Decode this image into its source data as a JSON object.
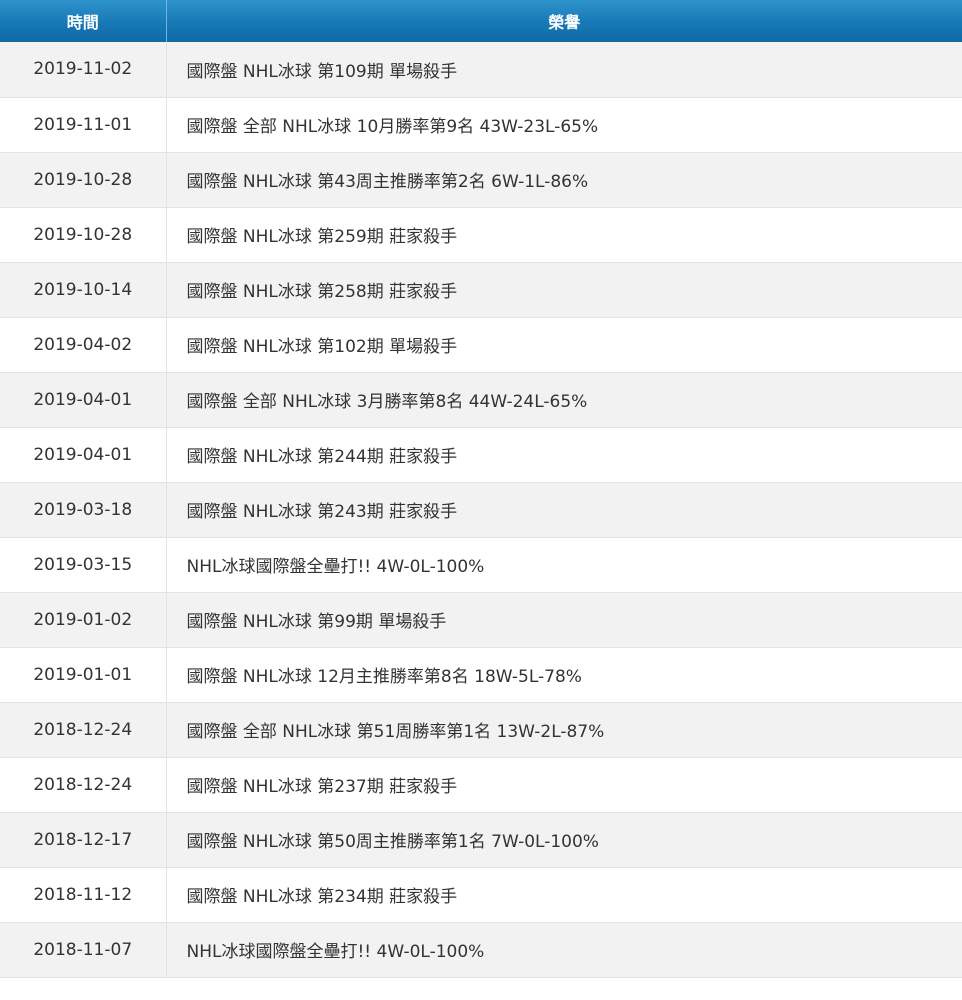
{
  "table": {
    "headers": {
      "date": "時間",
      "honor": "榮譽"
    },
    "rows": [
      {
        "date": "2019-11-02",
        "honor": "國際盤 NHL冰球 第109期 單場殺手"
      },
      {
        "date": "2019-11-01",
        "honor": "國際盤 全部 NHL冰球 10月勝率第9名 43W-23L-65%"
      },
      {
        "date": "2019-10-28",
        "honor": "國際盤 NHL冰球 第43周主推勝率第2名 6W-1L-86%"
      },
      {
        "date": "2019-10-28",
        "honor": "國際盤 NHL冰球 第259期 莊家殺手"
      },
      {
        "date": "2019-10-14",
        "honor": "國際盤 NHL冰球 第258期 莊家殺手"
      },
      {
        "date": "2019-04-02",
        "honor": "國際盤 NHL冰球 第102期 單場殺手"
      },
      {
        "date": "2019-04-01",
        "honor": "國際盤 全部 NHL冰球 3月勝率第8名 44W-24L-65%"
      },
      {
        "date": "2019-04-01",
        "honor": "國際盤 NHL冰球 第244期 莊家殺手"
      },
      {
        "date": "2019-03-18",
        "honor": "國際盤 NHL冰球 第243期 莊家殺手"
      },
      {
        "date": "2019-03-15",
        "honor": "NHL冰球國際盤全壘打!! 4W-0L-100%"
      },
      {
        "date": "2019-01-02",
        "honor": "國際盤 NHL冰球 第99期 單場殺手"
      },
      {
        "date": "2019-01-01",
        "honor": "國際盤 NHL冰球 12月主推勝率第8名 18W-5L-78%"
      },
      {
        "date": "2018-12-24",
        "honor": "國際盤 全部 NHL冰球 第51周勝率第1名 13W-2L-87%"
      },
      {
        "date": "2018-12-24",
        "honor": "國際盤 NHL冰球 第237期 莊家殺手"
      },
      {
        "date": "2018-12-17",
        "honor": "國際盤 NHL冰球 第50周主推勝率第1名 7W-0L-100%"
      },
      {
        "date": "2018-11-12",
        "honor": "國際盤 NHL冰球 第234期 莊家殺手"
      },
      {
        "date": "2018-11-07",
        "honor": "NHL冰球國際盤全壘打!! 4W-0L-100%"
      }
    ]
  }
}
